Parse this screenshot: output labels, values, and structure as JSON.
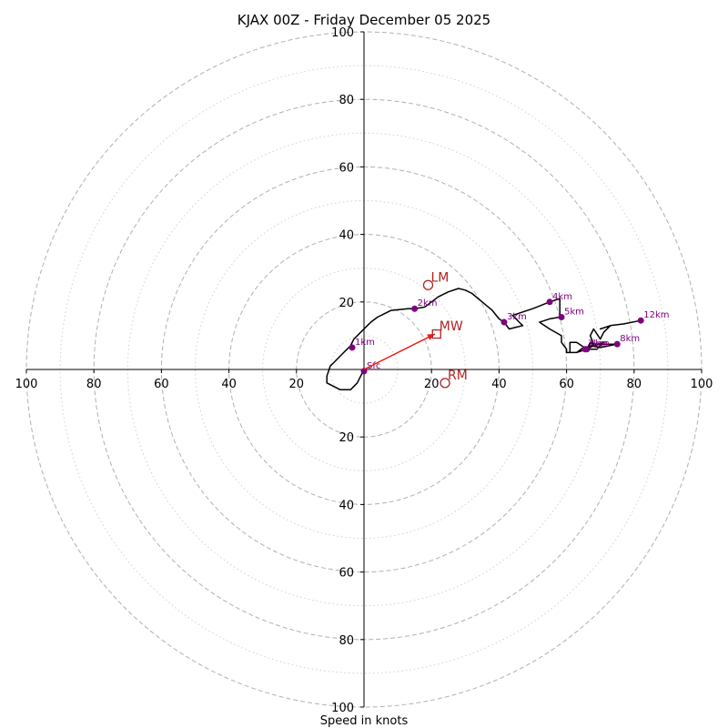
{
  "chart_data": {
    "type": "hodograph",
    "title": "KJAX 00Z - Friday December 05 2025",
    "xlabel": "Speed in knots",
    "units": "knots",
    "axis_range": [
      -100,
      100
    ],
    "major_rings": [
      20,
      40,
      60,
      80,
      100
    ],
    "minor_rings": [
      10,
      30,
      50,
      70,
      90
    ],
    "x_tick_labels": [
      "100",
      "80",
      "60",
      "40",
      "20",
      "20",
      "40",
      "60",
      "80",
      "100"
    ],
    "x_tick_values": [
      -100,
      -80,
      -60,
      -40,
      -20,
      20,
      40,
      60,
      80,
      100
    ],
    "y_tick_labels": [
      "100",
      "80",
      "60",
      "40",
      "20",
      "20",
      "40",
      "60",
      "80",
      "100"
    ],
    "y_tick_values": [
      100,
      80,
      60,
      40,
      20,
      -20,
      -40,
      -60,
      -80,
      -100
    ],
    "colors": {
      "trace": "#000000",
      "height_marker": "#800080",
      "motion": "#b22222",
      "mean_wind_arrow": "#e8201a",
      "grid": "#b0b0b0"
    },
    "trace": [
      [
        0,
        0
      ],
      [
        -2,
        -4
      ],
      [
        -4,
        -6
      ],
      [
        -7,
        -6
      ],
      [
        -11,
        -4
      ],
      [
        -11,
        -2
      ],
      [
        -10,
        1
      ],
      [
        -9,
        2
      ],
      [
        -8,
        3
      ],
      [
        -6,
        5
      ],
      [
        -4,
        7
      ],
      [
        -3,
        9
      ],
      [
        -2,
        10
      ],
      [
        -1,
        11
      ],
      [
        0,
        12
      ],
      [
        1,
        13
      ],
      [
        2,
        14
      ],
      [
        4,
        15.5
      ],
      [
        6,
        16.5
      ],
      [
        8,
        17.5
      ],
      [
        11,
        17.8
      ],
      [
        13,
        18
      ],
      [
        15,
        18
      ],
      [
        18,
        18.5
      ],
      [
        20,
        20
      ],
      [
        22,
        21.5
      ],
      [
        25,
        23
      ],
      [
        28,
        24
      ],
      [
        30,
        23.5
      ],
      [
        32,
        22.5
      ],
      [
        35,
        20
      ],
      [
        38,
        17.5
      ],
      [
        40,
        15
      ],
      [
        41.5,
        14
      ],
      [
        43,
        12
      ],
      [
        45,
        12.5
      ],
      [
        47,
        13
      ],
      [
        46,
        14
      ],
      [
        44,
        16
      ],
      [
        50,
        18
      ],
      [
        55,
        20
      ],
      [
        58,
        21
      ],
      [
        58,
        17
      ],
      [
        58,
        15.5
      ],
      [
        55,
        15
      ],
      [
        52,
        14
      ],
      [
        55,
        12
      ],
      [
        58.5,
        10
      ],
      [
        58.5,
        8
      ],
      [
        60,
        6
      ],
      [
        60,
        5
      ],
      [
        63,
        5
      ],
      [
        66,
        6
      ],
      [
        68,
        7
      ],
      [
        71,
        8
      ],
      [
        69,
        6
      ],
      [
        66,
        6
      ],
      [
        63,
        8
      ],
      [
        61,
        8
      ],
      [
        61,
        6
      ],
      [
        61,
        5
      ],
      [
        63,
        5
      ],
      [
        65,
        6.5
      ],
      [
        66,
        6
      ],
      [
        67,
        8
      ],
      [
        68,
        7.5
      ],
      [
        70,
        7.5
      ],
      [
        73,
        7.5
      ],
      [
        75,
        7.5
      ],
      [
        70,
        6.5
      ],
      [
        67,
        7
      ],
      [
        66,
        6
      ],
      [
        68,
        7.5
      ],
      [
        67,
        10
      ],
      [
        68,
        12
      ],
      [
        70,
        9
      ],
      [
        71,
        11
      ],
      [
        73,
        13
      ],
      [
        70,
        12
      ],
      [
        73,
        13
      ],
      [
        77,
        13.5
      ],
      [
        82,
        14.5
      ]
    ],
    "height_markers": [
      {
        "label": "Sfc",
        "u": 0,
        "v": -0.5
      },
      {
        "label": "1km",
        "u": -3.5,
        "v": 6.5
      },
      {
        "label": "2km",
        "u": 15,
        "v": 18
      },
      {
        "label": "3km",
        "u": 41.5,
        "v": 14
      },
      {
        "label": "4km",
        "u": 55,
        "v": 20
      },
      {
        "label": "5km",
        "u": 58.5,
        "v": 15.5
      },
      {
        "label": "6km",
        "u": 66,
        "v": 6
      },
      {
        "label": "7km",
        "u": 65.5,
        "v": 6
      },
      {
        "label": "8km",
        "u": 75,
        "v": 7.5
      },
      {
        "label": "12km",
        "u": 82,
        "v": 14.5
      }
    ],
    "storm_motion": [
      {
        "label": "LM",
        "marker": "circle",
        "u": 19,
        "v": 25
      },
      {
        "label": "RM",
        "marker": "circle",
        "u": 24,
        "v": -4
      },
      {
        "label": "MW",
        "marker": "square",
        "u": 21.5,
        "v": 10.5
      }
    ],
    "mean_wind_arrow": {
      "from": [
        0,
        0
      ],
      "to": [
        21,
        10.5
      ]
    }
  }
}
